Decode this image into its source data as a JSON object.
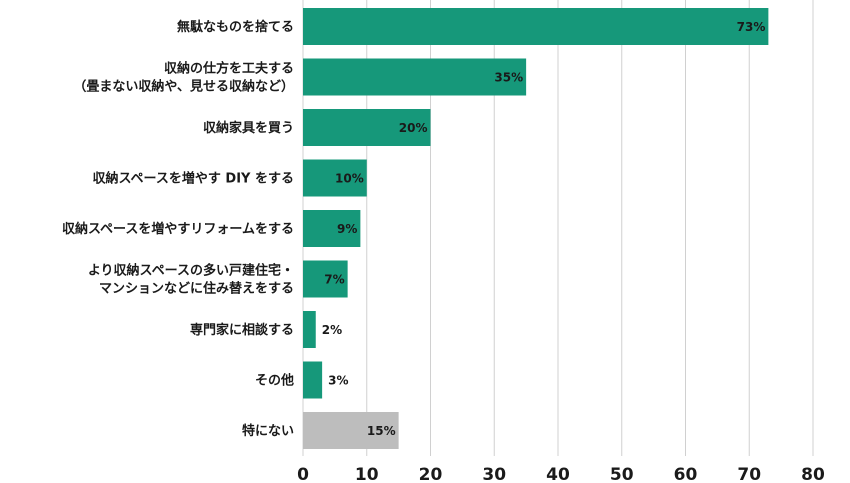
{
  "chart_data": {
    "type": "bar",
    "orientation": "horizontal",
    "categories": [
      [
        "無駄なものを捨てる"
      ],
      [
        "収納の仕方を工夫する",
        "（畳まない収納や、見せる収納など）"
      ],
      [
        "収納家具を買う"
      ],
      [
        "収納スペースを増やす DIY をする"
      ],
      [
        "収納スペースを増やすリフォームをする"
      ],
      [
        "より収納スペースの多い戸建住宅・",
        "マンションなどに住み替えをする"
      ],
      [
        "専門家に相談する"
      ],
      [
        "その他"
      ],
      [
        "特にない"
      ]
    ],
    "values": [
      73,
      35,
      20,
      10,
      9,
      7,
      2,
      3,
      15
    ],
    "value_labels": [
      "73%",
      "35%",
      "20%",
      "10%",
      "9%",
      "7%",
      "2%",
      "3%",
      "15%"
    ],
    "bar_colors": [
      "#16987a",
      "#16987a",
      "#16987a",
      "#16987a",
      "#16987a",
      "#16987a",
      "#16987a",
      "#16987a",
      "#bdbdbd"
    ],
    "xlim": [
      0,
      80
    ],
    "xticks": [
      0,
      10,
      20,
      30,
      40,
      50,
      60,
      70,
      80
    ],
    "grid": true,
    "title": "",
    "xlabel": "",
    "ylabel": ""
  }
}
